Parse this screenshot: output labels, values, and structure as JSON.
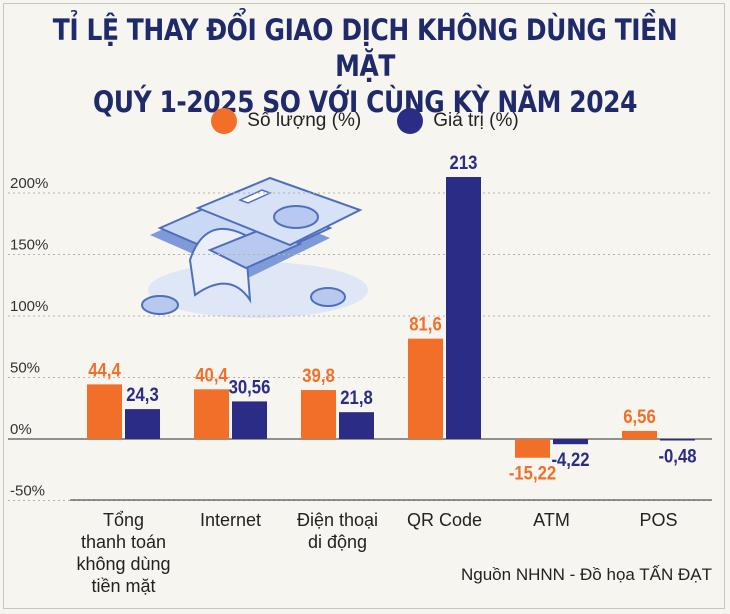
{
  "title_line1": "TỈ LỆ THAY ĐỔI GIAO DỊCH KHÔNG DÙNG TIỀN MẶT",
  "title_line2": "QUÝ 1-2025 SO VỚI CÙNG KỲ NĂM 2024",
  "source": "Nguồn NHNN - Đồ họa TẤN ĐẠT",
  "colors": {
    "orange": "#f26f2a",
    "navy": "#2b2c86",
    "title": "#1f2a6b"
  },
  "chart_data": {
    "type": "bar",
    "categories": [
      [
        "Tổng",
        "thanh toán",
        "không dùng",
        "tiền mặt"
      ],
      [
        "Internet"
      ],
      [
        "Điện thoại",
        "di động"
      ],
      [
        "QR Code"
      ],
      [
        "ATM"
      ],
      [
        "POS"
      ]
    ],
    "series": [
      {
        "name": "Số lượng (%)",
        "color": "#f26f2a",
        "values": [
          44.4,
          40.4,
          39.8,
          81.6,
          -15.22,
          6.56
        ],
        "labels": [
          "44,4",
          "40,4",
          "39,8",
          "81,6",
          "-15,22",
          "6,56"
        ]
      },
      {
        "name": "Giá trị (%)",
        "color": "#2b2c86",
        "values": [
          24.3,
          30.56,
          21.8,
          213,
          -4.22,
          -0.48
        ],
        "labels": [
          "24,3",
          "30,56",
          "21,8",
          "213",
          "-4,22",
          "-0,48"
        ]
      }
    ],
    "yticks": [
      200,
      150,
      100,
      50,
      0,
      -50
    ],
    "ytick_labels": [
      "200%",
      "150%",
      "100%",
      "50%",
      "0%",
      "-50%"
    ],
    "ylim": [
      -50,
      213
    ],
    "grid": true
  }
}
